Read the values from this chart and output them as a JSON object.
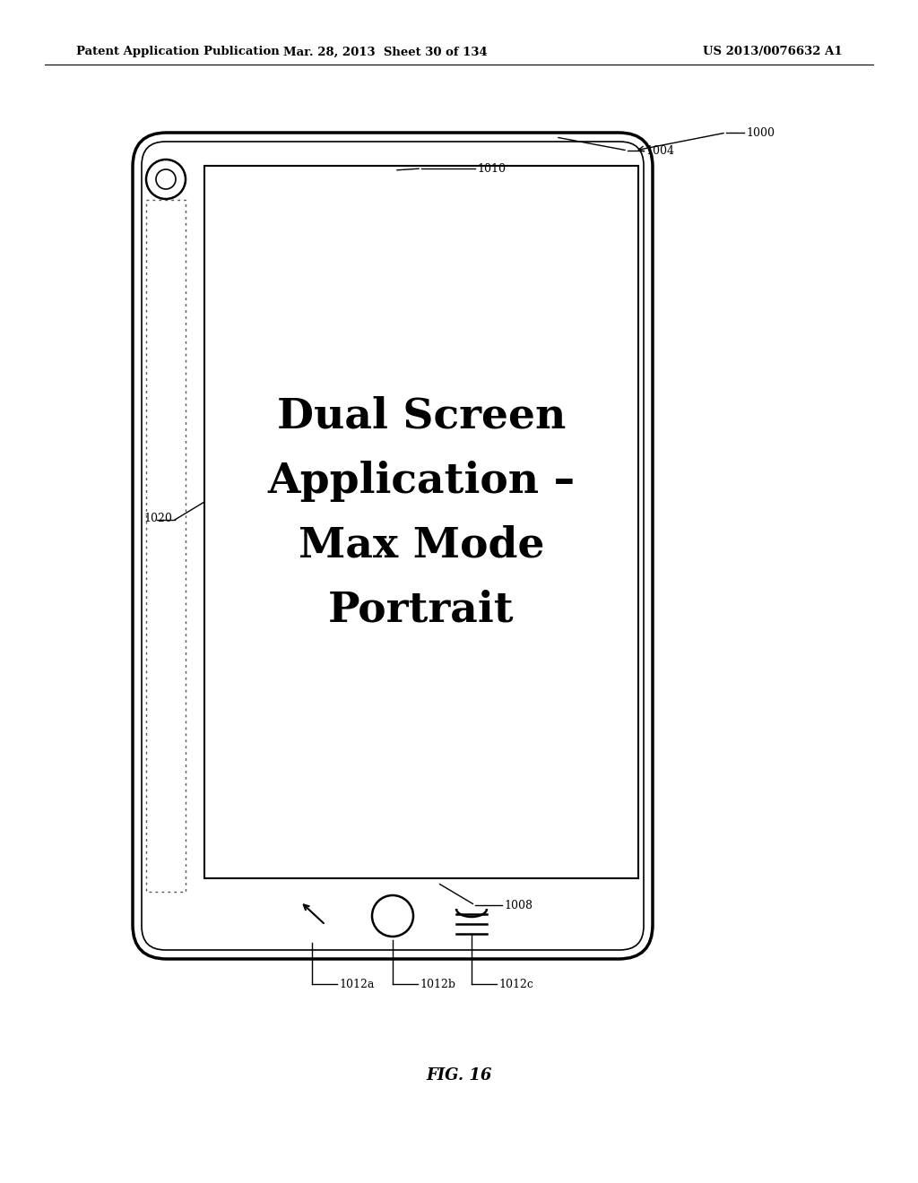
{
  "bg_color": "#ffffff",
  "header_left": "Patent Application Publication",
  "header_mid": "Mar. 28, 2013  Sheet 30 of 134",
  "header_right": "US 2013/0076632 A1",
  "fig_label": "FIG. 16",
  "screen_text_lines": [
    "Dual Screen",
    "Application –",
    "Max Mode",
    "Portrait"
  ],
  "label_1000": "1000",
  "label_1004": "1004",
  "label_1010": "1010",
  "label_1020": "1020",
  "label_1008": "1008",
  "label_1012a": "1012a",
  "label_1012b": "1012b",
  "label_1012c": "1012c"
}
